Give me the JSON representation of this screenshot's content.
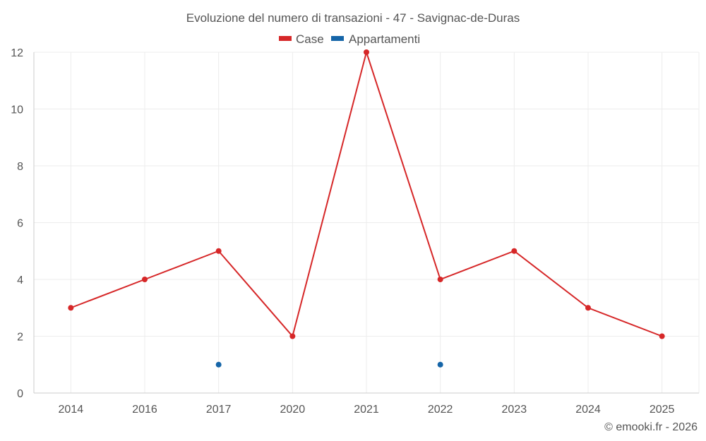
{
  "chart_data": {
    "type": "line",
    "title": "Evoluzione del numero di transazioni - 47 - Savignac-de-Duras",
    "categories": [
      "2014",
      "2016",
      "2017",
      "2020",
      "2021",
      "2022",
      "2023",
      "2024",
      "2025"
    ],
    "series": [
      {
        "name": "Case",
        "color": "#d62728",
        "values": [
          3,
          4,
          5,
          2,
          12,
          4,
          5,
          3,
          2
        ]
      },
      {
        "name": "Appartamenti",
        "color": "#1565a8",
        "values": [
          null,
          null,
          1,
          null,
          null,
          1,
          null,
          null,
          null
        ]
      }
    ],
    "y_ticks": [
      "0",
      "2",
      "4",
      "6",
      "8",
      "10",
      "12"
    ],
    "ylim": [
      0,
      12
    ],
    "grid": true,
    "legend_position": "top-center"
  },
  "footer": {
    "credit": "© emooki.fr - 2026"
  }
}
